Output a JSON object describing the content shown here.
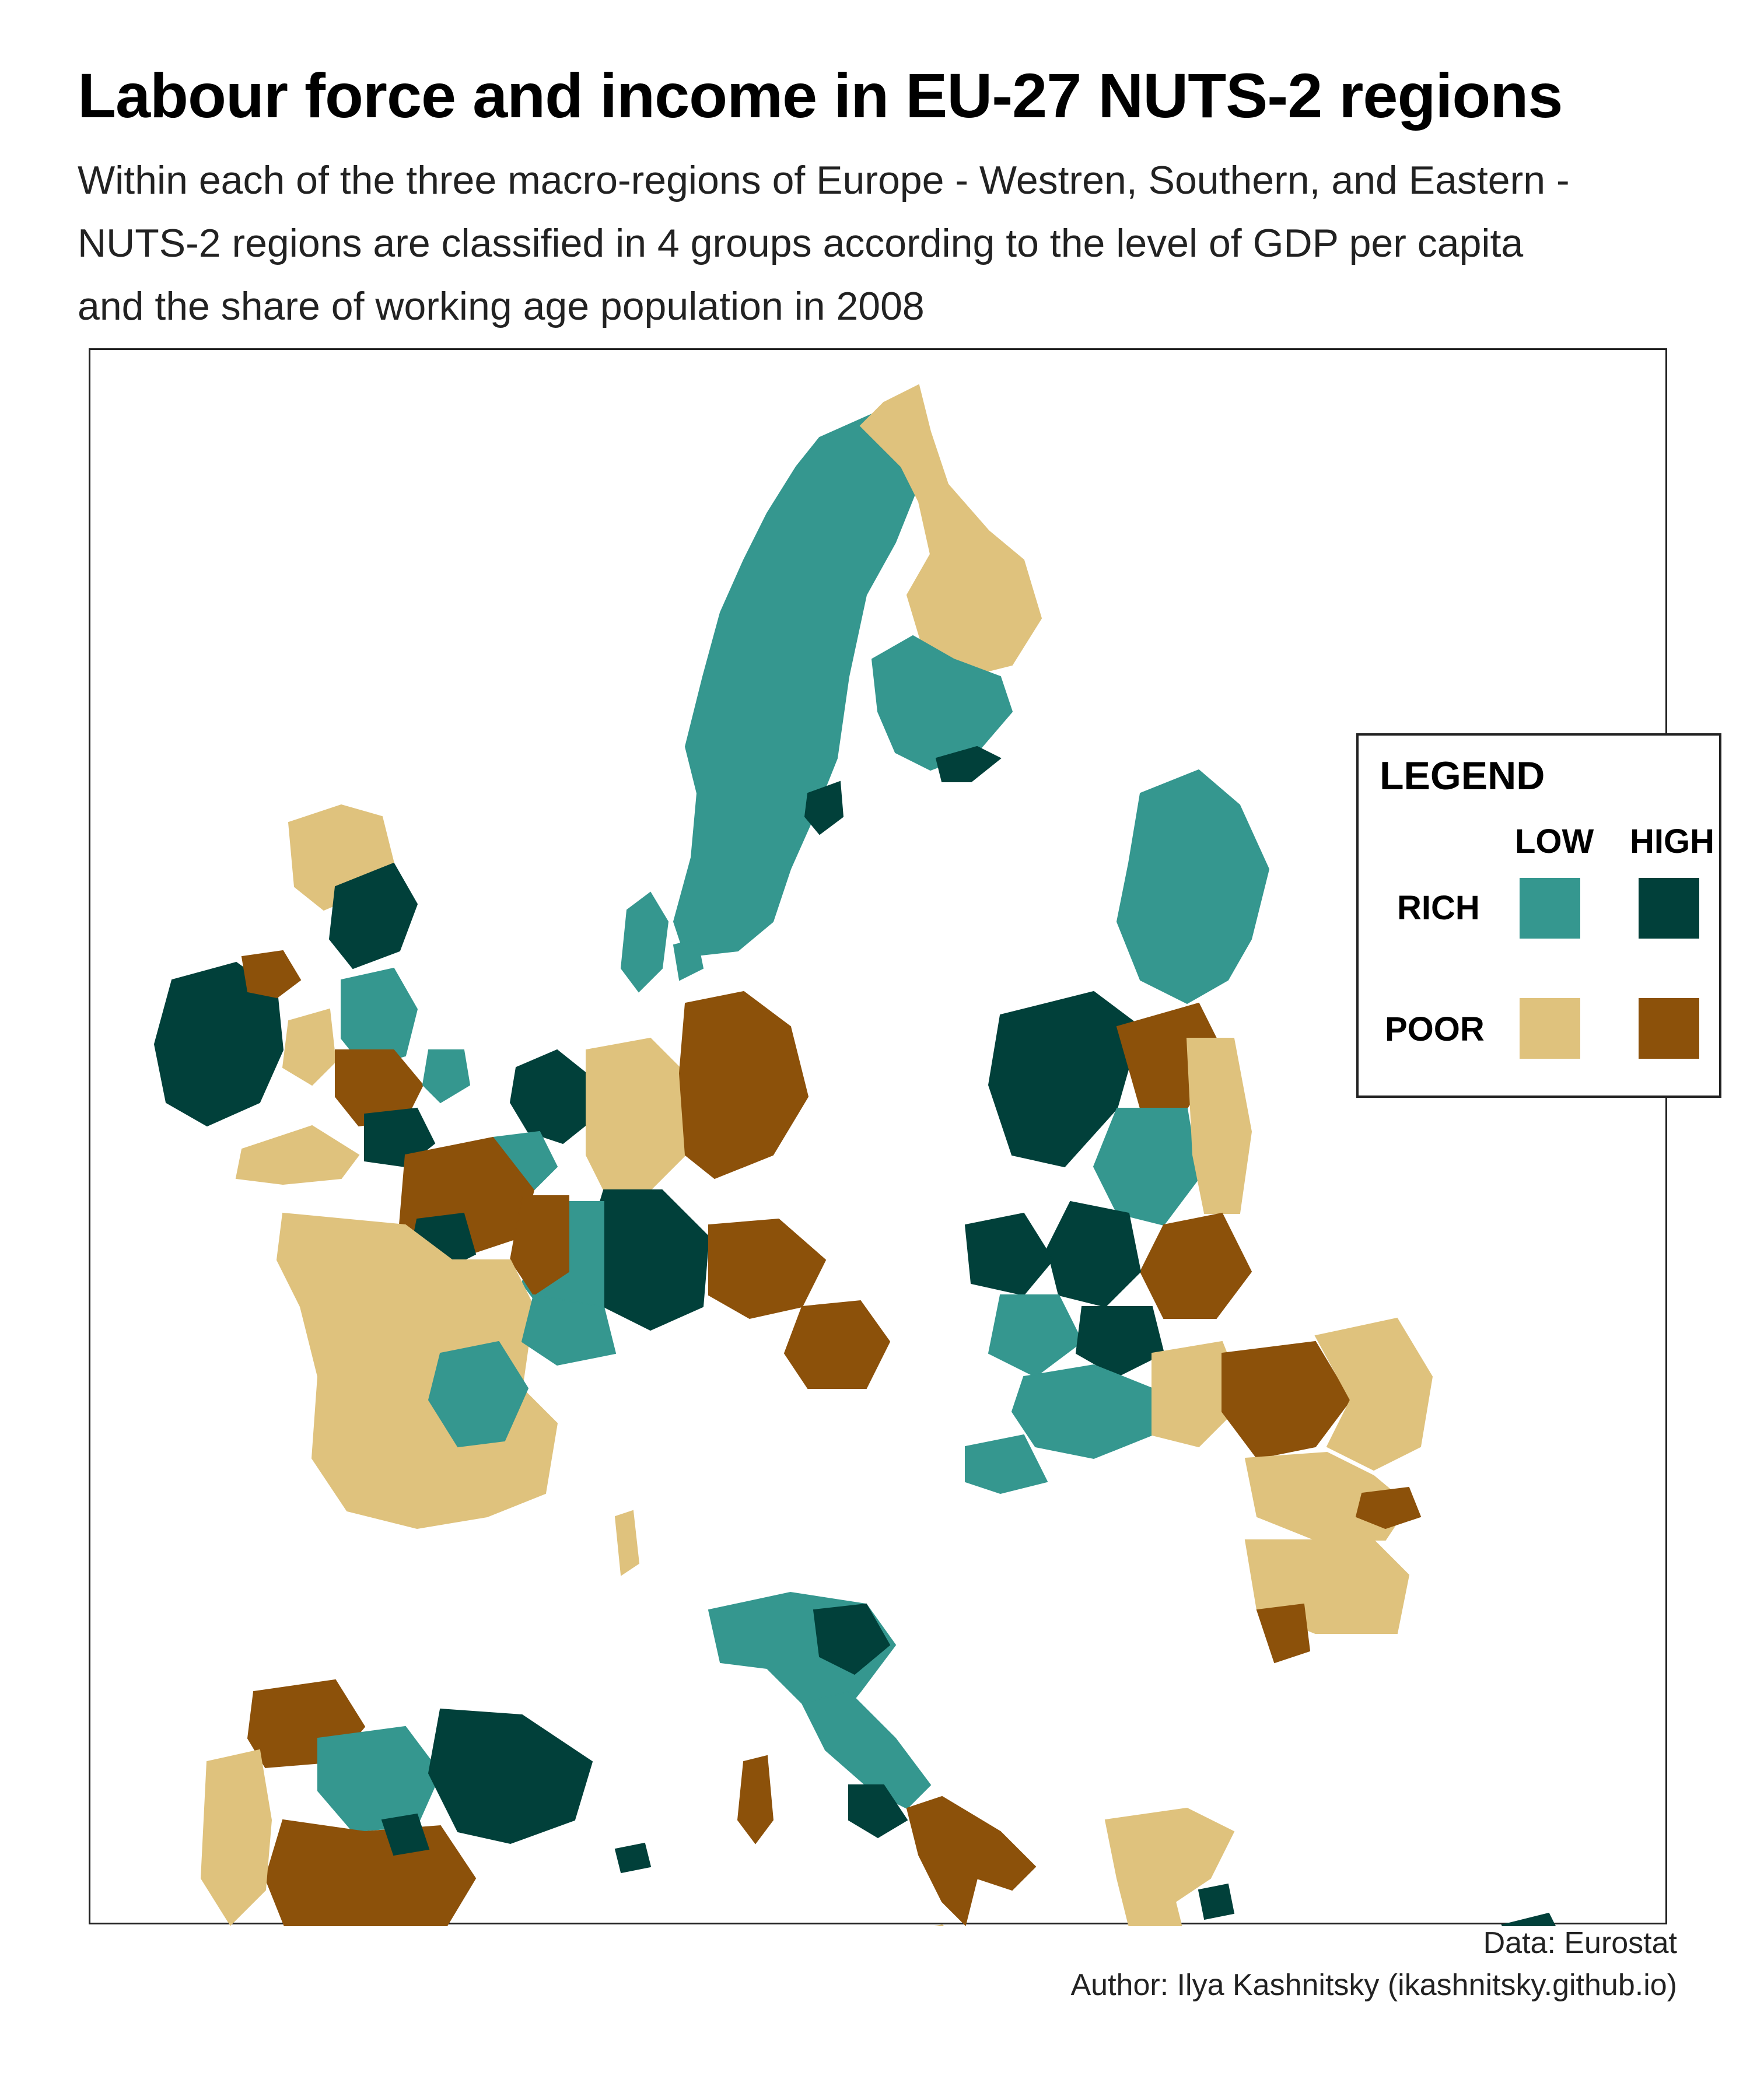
{
  "title": "Labour force and income in EU-27 NUTS-2 regions",
  "subtitle_lines": [
    "Within each of the three macro-regions of Europe - Westren, Southern, and Eastern -",
    "NUTS-2 regions are classified in 4 groups according to the level of GDP per capita",
    "and the share of working age population in 2008"
  ],
  "legend": {
    "title": "LEGEND",
    "col_low": "LOW",
    "col_high": "HIGH",
    "row_rich": "RICH",
    "row_poor": "POOR",
    "classes": [
      {
        "income": "RICH",
        "working_age": "LOW",
        "color": "#35978f"
      },
      {
        "income": "RICH",
        "working_age": "HIGH",
        "color": "#01403a"
      },
      {
        "income": "POOR",
        "working_age": "LOW",
        "color": "#dfc27d"
      },
      {
        "income": "POOR",
        "working_age": "HIGH",
        "color": "#8c510a"
      }
    ]
  },
  "colors": {
    "rich_low": "#35978f",
    "rich_high": "#01403a",
    "poor_low": "#dfc27d",
    "poor_high": "#8c510a"
  },
  "credits": {
    "data": "Data: Eurostat",
    "author": "Author: Ilya Kashnitsky (ikashnitsky.github.io)"
  }
}
